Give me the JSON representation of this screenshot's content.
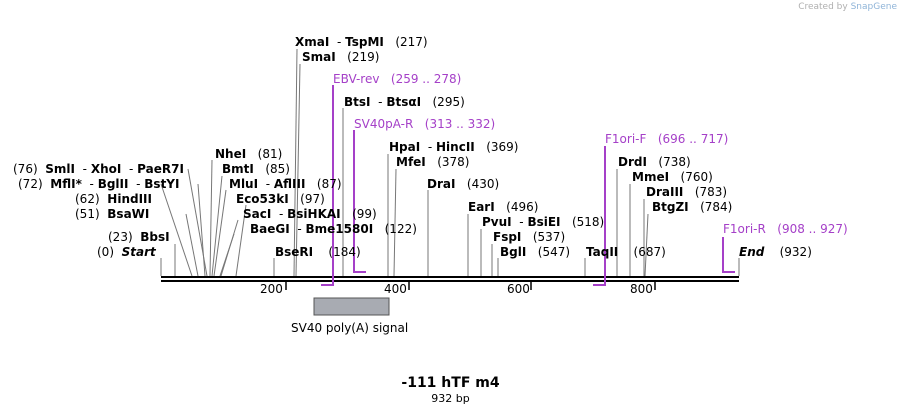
{
  "credit": {
    "prefix": "Created by",
    "brand": "SnapGene"
  },
  "map": {
    "title": "-111 hTF m4",
    "length_label": "932 bp",
    "ticks": [
      "200",
      "400",
      "600",
      "800"
    ],
    "feature": {
      "name": "SV40 poly(A) signal"
    }
  },
  "sites": {
    "start": {
      "pos": "(0)",
      "name": "Start"
    },
    "end": {
      "name": "End",
      "pos": "(932)"
    },
    "bbsi": {
      "pos": "(23)",
      "name": "BbsI"
    },
    "bsawi": {
      "pos": "(51)",
      "name": "BsaWI"
    },
    "hindiii": {
      "pos": "(62)",
      "name": "HindIII"
    },
    "mfli": {
      "pos": "(72)",
      "name": "MflI",
      "star": "*",
      "sep1": "-",
      "name2": "BglII",
      "sep2": "-",
      "name3": "BstYI"
    },
    "smli": {
      "pos": "(76)",
      "name": "SmlI",
      "sep1": "-",
      "name2": "XhoI",
      "sep2": "-",
      "name3": "PaeR7I"
    },
    "nhei": {
      "name": "NheI",
      "pos": "(81)"
    },
    "bmti": {
      "name": "BmtI",
      "pos": "(85)"
    },
    "mlui": {
      "name": "MluI",
      "sep": "-",
      "name2": "AflIII",
      "pos": "(87)"
    },
    "eco53ki": {
      "name": "Eco53kI",
      "pos": "(97)"
    },
    "saci": {
      "name": "SacI",
      "sep": "-",
      "name2": "BsiHKAI",
      "pos": "(99)"
    },
    "baegi": {
      "name": "BaeGI",
      "sep": "-",
      "name2": "Bme1580I",
      "pos": "(122)"
    },
    "bseri": {
      "name": "BseRI",
      "pos": "(184)"
    },
    "xmai": {
      "name": "XmaI",
      "sep": "-",
      "name2": "TspMI",
      "pos": "(217)"
    },
    "smai": {
      "name": "SmaI",
      "pos": "(219)"
    },
    "btsi": {
      "name": "BtsI",
      "sep": "-",
      "name2": "BtsαI",
      "pos": "(295)"
    },
    "hpai": {
      "name": "HpaI",
      "sep": "-",
      "name2": "HincII",
      "pos": "(369)"
    },
    "mfei": {
      "name": "MfeI",
      "pos": "(378)"
    },
    "drai": {
      "name": "DraI",
      "pos": "(430)"
    },
    "eari": {
      "name": "EarI",
      "pos": "(496)"
    },
    "pvui": {
      "name": "PvuI",
      "sep": "-",
      "name2": "BsiEI",
      "pos": "(518)"
    },
    "fspi": {
      "name": "FspI",
      "pos": "(537)"
    },
    "bgli": {
      "name": "BglI",
      "pos": "(547)"
    },
    "taqii": {
      "name": "TaqII",
      "pos": "(687)"
    },
    "drdi": {
      "name": "DrdI",
      "pos": "(738)"
    },
    "mmei": {
      "name": "MmeI",
      "pos": "(760)"
    },
    "draiii": {
      "name": "DraIII",
      "pos": "(783)"
    },
    "btgzi": {
      "name": "BtgZI",
      "pos": "(784)"
    }
  },
  "primers": {
    "ebv_rev": {
      "name": "EBV-rev",
      "range": "(259 .. 278)"
    },
    "sv40pa_r": {
      "name": "SV40pA-R",
      "range": "(313 .. 332)"
    },
    "f1ori_f": {
      "name": "F1ori-F",
      "range": "(696 .. 717)"
    },
    "f1ori_r": {
      "name": "F1ori-R",
      "range": "(908 .. 927)"
    }
  },
  "colors": {
    "primer": "#a540c8",
    "feature_fill": "#a8abb2",
    "line": "#777777",
    "backbone": "#000000"
  }
}
